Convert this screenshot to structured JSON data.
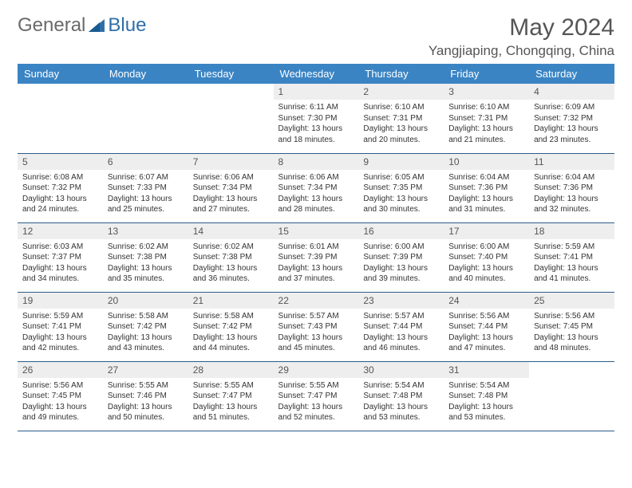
{
  "brand": {
    "part1": "General",
    "part2": "Blue"
  },
  "colors": {
    "header_bg": "#3a84c4",
    "header_text": "#ffffff",
    "daynum_bg": "#eeeeee",
    "border": "#2c5d8a",
    "title": "#555555",
    "body_text": "#333333",
    "logo_accent": "#2f6fa8"
  },
  "title": "May 2024",
  "location": "Yangjiaping, Chongqing, China",
  "weekdays": [
    "Sunday",
    "Monday",
    "Tuesday",
    "Wednesday",
    "Thursday",
    "Friday",
    "Saturday"
  ],
  "weeks": [
    [
      null,
      null,
      null,
      {
        "n": "1",
        "sr": "6:11 AM",
        "ss": "7:30 PM",
        "dl": "13 hours and 18 minutes."
      },
      {
        "n": "2",
        "sr": "6:10 AM",
        "ss": "7:31 PM",
        "dl": "13 hours and 20 minutes."
      },
      {
        "n": "3",
        "sr": "6:10 AM",
        "ss": "7:31 PM",
        "dl": "13 hours and 21 minutes."
      },
      {
        "n": "4",
        "sr": "6:09 AM",
        "ss": "7:32 PM",
        "dl": "13 hours and 23 minutes."
      }
    ],
    [
      {
        "n": "5",
        "sr": "6:08 AM",
        "ss": "7:32 PM",
        "dl": "13 hours and 24 minutes."
      },
      {
        "n": "6",
        "sr": "6:07 AM",
        "ss": "7:33 PM",
        "dl": "13 hours and 25 minutes."
      },
      {
        "n": "7",
        "sr": "6:06 AM",
        "ss": "7:34 PM",
        "dl": "13 hours and 27 minutes."
      },
      {
        "n": "8",
        "sr": "6:06 AM",
        "ss": "7:34 PM",
        "dl": "13 hours and 28 minutes."
      },
      {
        "n": "9",
        "sr": "6:05 AM",
        "ss": "7:35 PM",
        "dl": "13 hours and 30 minutes."
      },
      {
        "n": "10",
        "sr": "6:04 AM",
        "ss": "7:36 PM",
        "dl": "13 hours and 31 minutes."
      },
      {
        "n": "11",
        "sr": "6:04 AM",
        "ss": "7:36 PM",
        "dl": "13 hours and 32 minutes."
      }
    ],
    [
      {
        "n": "12",
        "sr": "6:03 AM",
        "ss": "7:37 PM",
        "dl": "13 hours and 34 minutes."
      },
      {
        "n": "13",
        "sr": "6:02 AM",
        "ss": "7:38 PM",
        "dl": "13 hours and 35 minutes."
      },
      {
        "n": "14",
        "sr": "6:02 AM",
        "ss": "7:38 PM",
        "dl": "13 hours and 36 minutes."
      },
      {
        "n": "15",
        "sr": "6:01 AM",
        "ss": "7:39 PM",
        "dl": "13 hours and 37 minutes."
      },
      {
        "n": "16",
        "sr": "6:00 AM",
        "ss": "7:39 PM",
        "dl": "13 hours and 39 minutes."
      },
      {
        "n": "17",
        "sr": "6:00 AM",
        "ss": "7:40 PM",
        "dl": "13 hours and 40 minutes."
      },
      {
        "n": "18",
        "sr": "5:59 AM",
        "ss": "7:41 PM",
        "dl": "13 hours and 41 minutes."
      }
    ],
    [
      {
        "n": "19",
        "sr": "5:59 AM",
        "ss": "7:41 PM",
        "dl": "13 hours and 42 minutes."
      },
      {
        "n": "20",
        "sr": "5:58 AM",
        "ss": "7:42 PM",
        "dl": "13 hours and 43 minutes."
      },
      {
        "n": "21",
        "sr": "5:58 AM",
        "ss": "7:42 PM",
        "dl": "13 hours and 44 minutes."
      },
      {
        "n": "22",
        "sr": "5:57 AM",
        "ss": "7:43 PM",
        "dl": "13 hours and 45 minutes."
      },
      {
        "n": "23",
        "sr": "5:57 AM",
        "ss": "7:44 PM",
        "dl": "13 hours and 46 minutes."
      },
      {
        "n": "24",
        "sr": "5:56 AM",
        "ss": "7:44 PM",
        "dl": "13 hours and 47 minutes."
      },
      {
        "n": "25",
        "sr": "5:56 AM",
        "ss": "7:45 PM",
        "dl": "13 hours and 48 minutes."
      }
    ],
    [
      {
        "n": "26",
        "sr": "5:56 AM",
        "ss": "7:45 PM",
        "dl": "13 hours and 49 minutes."
      },
      {
        "n": "27",
        "sr": "5:55 AM",
        "ss": "7:46 PM",
        "dl": "13 hours and 50 minutes."
      },
      {
        "n": "28",
        "sr": "5:55 AM",
        "ss": "7:47 PM",
        "dl": "13 hours and 51 minutes."
      },
      {
        "n": "29",
        "sr": "5:55 AM",
        "ss": "7:47 PM",
        "dl": "13 hours and 52 minutes."
      },
      {
        "n": "30",
        "sr": "5:54 AM",
        "ss": "7:48 PM",
        "dl": "13 hours and 53 minutes."
      },
      {
        "n": "31",
        "sr": "5:54 AM",
        "ss": "7:48 PM",
        "dl": "13 hours and 53 minutes."
      },
      null
    ]
  ],
  "labels": {
    "sunrise": "Sunrise:",
    "sunset": "Sunset:",
    "daylight": "Daylight:"
  }
}
